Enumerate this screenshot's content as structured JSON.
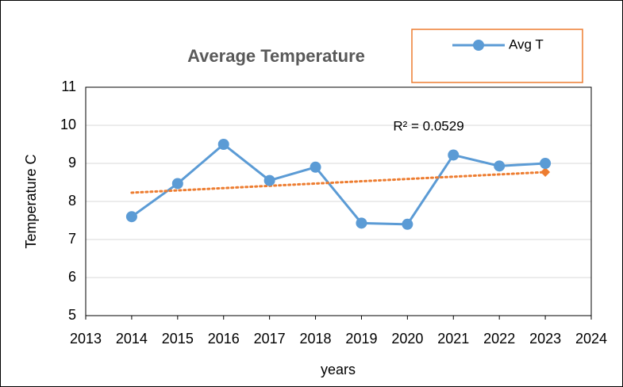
{
  "chart_data": {
    "type": "line",
    "title": "Average Temperature",
    "xlabel": "years",
    "ylabel": "Temperature C",
    "x": [
      2014,
      2015,
      2016,
      2017,
      2018,
      2019,
      2020,
      2021,
      2022,
      2023
    ],
    "series": [
      {
        "name": "Avg T",
        "color": "#5b9bd5",
        "values": [
          7.6,
          8.47,
          9.5,
          8.55,
          8.9,
          7.43,
          7.4,
          9.22,
          8.93,
          9.0
        ]
      }
    ],
    "trendline": {
      "color": "#ed7d31",
      "label": "R² = 0.0529",
      "x": [
        2014,
        2023
      ],
      "values": [
        8.23,
        8.77
      ]
    },
    "xlim": [
      2013,
      2024
    ],
    "xticks": [
      2013,
      2014,
      2015,
      2016,
      2017,
      2018,
      2019,
      2020,
      2021,
      2022,
      2023,
      2024
    ],
    "ylim": [
      5,
      11
    ],
    "yticks": [
      5,
      6,
      7,
      8,
      9,
      10,
      11
    ],
    "grid": true
  }
}
